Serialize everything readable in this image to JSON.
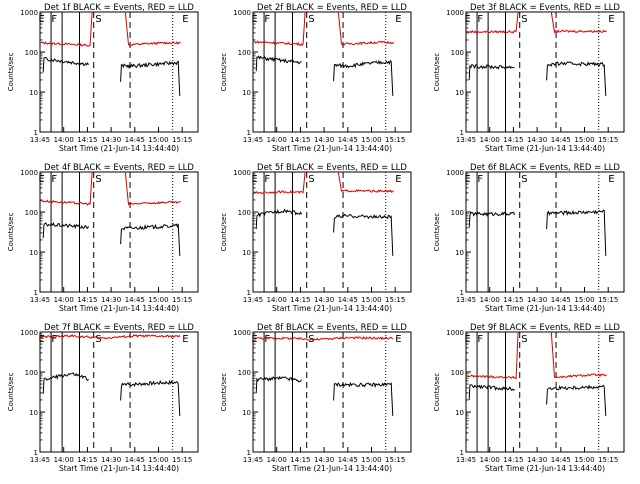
{
  "chart_data": {
    "type": "line",
    "xlabel": "Start Time (21-Jun-14 13:44:40)",
    "ylabel": "Counts/sec",
    "y_scale": "log",
    "ylim": [
      1,
      1000
    ],
    "y_ticks": [
      "1",
      "10",
      "100",
      "1000"
    ],
    "x_ticks": [
      "13:45",
      "14:00",
      "14:15",
      "14:30",
      "14:45",
      "15:00",
      "15:15"
    ],
    "x_tick_minutes": [
      0,
      15,
      30,
      45,
      60,
      75,
      90
    ],
    "series_colors": {
      "events": "#000000",
      "lld": "#e00000"
    },
    "panels": [
      {
        "title": "Det 1f BLACK = Events, RED = LLD",
        "markers": [
          "E",
          "F",
          "S",
          "E"
        ],
        "solid_lines_min": [
          7,
          14,
          25
        ],
        "dashed_lines_min": [
          34,
          57
        ],
        "dotted_lines_min": [
          84
        ],
        "events_level": [
          70,
          55,
          45,
          45,
          52,
          58
        ],
        "lld_level": [
          170,
          155,
          140,
          155,
          170,
          165
        ],
        "lld_high_min": [
          33,
          54
        ],
        "gap_min": [
          33,
          54
        ]
      },
      {
        "title": "Det 2f BLACK = Events, RED = LLD",
        "markers": [
          "E",
          "F",
          "S",
          "E"
        ],
        "solid_lines_min": [
          7,
          14,
          25
        ],
        "dashed_lines_min": [
          34,
          57
        ],
        "dotted_lines_min": [
          84
        ],
        "events_level": [
          75,
          60,
          50,
          45,
          55,
          60
        ],
        "lld_level": [
          180,
          165,
          150,
          160,
          175,
          170
        ],
        "lld_high_min": [
          33,
          54
        ],
        "gap_min": [
          33,
          54
        ]
      },
      {
        "title": "Det 3f BLACK = Events, RED = LLD",
        "markers": [
          "E",
          "F",
          "S",
          "E"
        ],
        "solid_lines_min": [
          7,
          14,
          25
        ],
        "dashed_lines_min": [
          34,
          57
        ],
        "dotted_lines_min": [
          84
        ],
        "events_level": [
          45,
          42,
          42,
          52,
          50,
          48
        ],
        "lld_level": [
          320,
          320,
          320,
          330,
          330,
          325
        ],
        "lld_high_min": [
          33,
          54
        ],
        "gap_min": [
          33,
          54
        ]
      },
      {
        "title": "Det 4f BLACK = Events, RED = LLD",
        "markers": [
          "E",
          "F",
          "S",
          "E"
        ],
        "solid_lines_min": [
          7,
          14,
          25
        ],
        "dashed_lines_min": [
          34,
          57
        ],
        "dotted_lines_min": [
          84
        ],
        "events_level": [
          50,
          45,
          38,
          40,
          44,
          50
        ],
        "lld_level": [
          190,
          170,
          150,
          160,
          175,
          170
        ],
        "lld_high_min": [
          33,
          54
        ],
        "gap_min": [
          33,
          54
        ]
      },
      {
        "title": "Det 5f BLACK = Events, RED = LLD",
        "markers": [
          "E",
          "F",
          "S",
          "E"
        ],
        "solid_lines_min": [
          7,
          14,
          25
        ],
        "dashed_lines_min": [
          34,
          57
        ],
        "dotted_lines_min": [
          84
        ],
        "events_level": [
          80,
          110,
          70,
          80,
          75,
          75
        ],
        "lld_level": [
          300,
          320,
          300,
          340,
          330,
          330
        ],
        "lld_high_min": [
          33,
          54
        ],
        "gap_min": [
          33,
          54
        ]
      },
      {
        "title": "Det 6f BLACK = Events, RED = LLD",
        "markers": [
          "E",
          "F",
          "S",
          "E"
        ],
        "solid_lines_min": [
          7,
          14,
          25
        ],
        "dashed_lines_min": [
          34,
          57
        ],
        "dotted_lines_min": [
          84
        ],
        "events_level": [
          90,
          90,
          90,
          95,
          100,
          110
        ],
        "lld_level": [],
        "lld_high_min": [],
        "gap_min": [
          33,
          54
        ]
      },
      {
        "title": "Det 7f BLACK = Events, RED = LLD",
        "markers": [
          "E",
          "F",
          "S",
          "E"
        ],
        "solid_lines_min": [
          7,
          14,
          25
        ],
        "dashed_lines_min": [
          34,
          57
        ],
        "dotted_lines_min": [
          84
        ],
        "events_level": [
          60,
          90,
          45,
          50,
          55,
          55
        ],
        "lld_level": [
          750,
          800,
          700,
          800,
          780,
          760
        ],
        "lld_high_min": [],
        "gap_min": [
          33,
          54
        ]
      },
      {
        "title": "Det 8f BLACK = Events, RED = LLD",
        "markers": [
          "E",
          "F",
          "S",
          "E"
        ],
        "solid_lines_min": [
          7,
          14,
          25
        ],
        "dashed_lines_min": [
          34,
          57
        ],
        "dotted_lines_min": [
          84
        ],
        "events_level": [
          65,
          70,
          50,
          48,
          48,
          52
        ],
        "lld_level": [
          700,
          700,
          650,
          720,
          700,
          700
        ],
        "lld_high_min": [],
        "gap_min": [
          33,
          54
        ]
      },
      {
        "title": "Det 9f BLACK = Events, RED = LLD",
        "markers": [
          "E",
          "F",
          "S",
          "E"
        ],
        "solid_lines_min": [
          7,
          14,
          25
        ],
        "dashed_lines_min": [
          34,
          57
        ],
        "dotted_lines_min": [
          84
        ],
        "events_level": [
          45,
          40,
          35,
          40,
          42,
          45
        ],
        "lld_level": [
          80,
          75,
          70,
          75,
          85,
          80
        ],
        "lld_high_min": [
          33,
          54
        ],
        "gap_min": [
          33,
          54
        ]
      }
    ]
  }
}
